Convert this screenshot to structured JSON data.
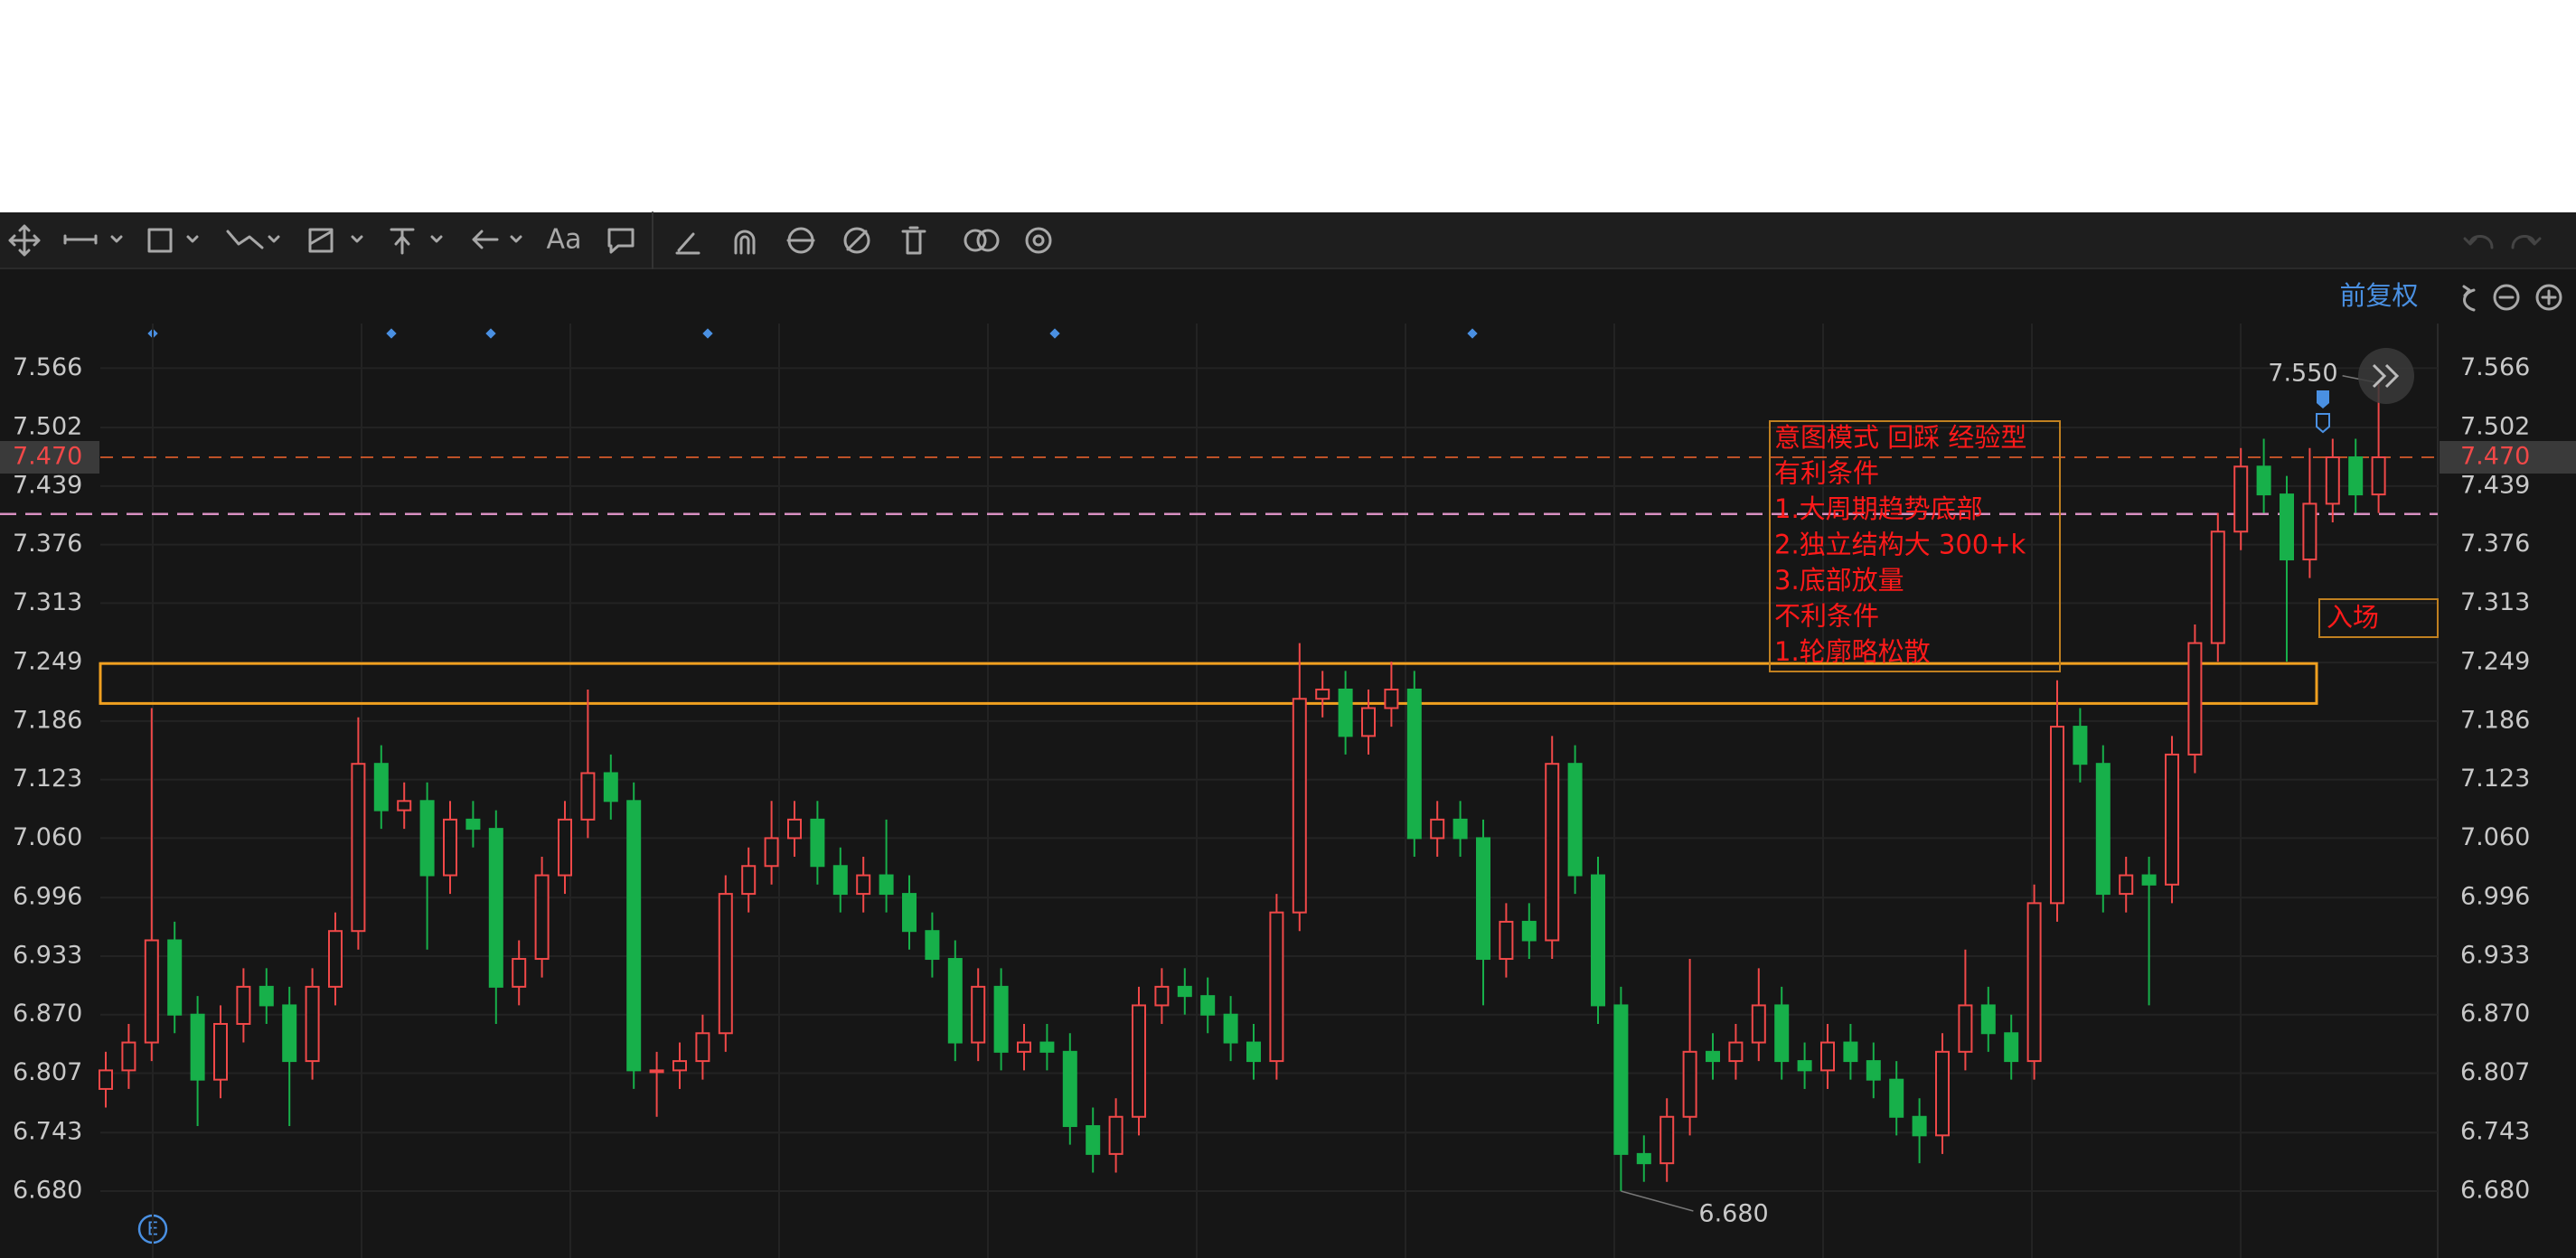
{
  "toolbar": {
    "text_tool": "Aa"
  },
  "header": {
    "adjust_mode": "前复权"
  },
  "annotations": {
    "note_lines": [
      "意图模式 回踩 经验型",
      "有利条件",
      "1.大周期趋势底部",
      "2.独立结构大  300+k",
      "3.底部放量",
      "不利条件",
      "1.轮廓略松散"
    ],
    "entry_label": "入场",
    "event_label": "E"
  },
  "chart_data": {
    "type": "candlestick",
    "up_color": "#f04848",
    "down_color": "#17b04a",
    "grid": true,
    "ylim": [
      6.608,
      7.614
    ],
    "yticks": [
      7.566,
      7.502,
      7.439,
      7.376,
      7.313,
      7.249,
      7.186,
      7.123,
      {
        "value": 7.06,
        "label": "7.060"
      },
      6.996,
      6.933,
      {
        "value": 6.87,
        "label": "6.870"
      },
      6.807,
      6.743,
      {
        "value": 6.68,
        "label": "6.680"
      }
    ],
    "last_price": {
      "value": 7.47,
      "label": "7.470",
      "color": "#e8602c"
    },
    "hlines": [
      {
        "value": 7.409,
        "color": "#d78fc0"
      }
    ],
    "zone": {
      "low": 7.205,
      "high": 7.248,
      "color": "#f0a020"
    },
    "high_mark": {
      "value": 7.55,
      "label": "7.550"
    },
    "low_mark": {
      "value": 6.68,
      "label": "6.680"
    },
    "open": [
      6.79,
      6.81,
      6.84,
      6.95,
      6.87,
      6.8,
      6.86,
      6.9,
      6.88,
      6.82,
      6.9,
      6.96,
      7.14,
      7.09,
      7.1,
      7.02,
      7.08,
      7.07,
      6.9,
      6.93,
      7.02,
      7.08,
      7.13,
      7.1,
      6.81,
      6.81,
      6.82,
      6.85,
      7.0,
      7.03,
      7.06,
      7.08,
      7.03,
      7.0,
      7.02,
      7.0,
      6.96,
      6.93,
      6.84,
      6.9,
      6.83,
      6.84,
      6.83,
      6.75,
      6.72,
      6.76,
      6.88,
      6.9,
      6.89,
      6.87,
      6.84,
      6.82,
      6.98,
      7.21,
      7.22,
      7.17,
      7.2,
      7.22,
      7.06,
      7.08,
      7.06,
      6.93,
      6.97,
      6.95,
      7.14,
      7.02,
      6.88,
      6.72,
      6.71,
      6.76,
      6.83,
      6.82,
      6.84,
      6.88,
      6.82,
      6.81,
      6.84,
      6.82,
      6.8,
      6.76,
      6.74,
      6.83,
      6.88,
      6.85,
      6.82,
      6.99,
      7.18,
      7.14,
      7.0,
      7.02,
      7.01,
      7.15,
      7.27,
      7.39,
      7.46,
      7.43,
      7.36,
      7.42,
      7.47,
      7.43
    ],
    "high": [
      6.83,
      6.86,
      7.2,
      6.97,
      6.89,
      6.88,
      6.92,
      6.92,
      6.9,
      6.92,
      6.98,
      7.19,
      7.16,
      7.12,
      7.12,
      7.1,
      7.1,
      7.09,
      6.95,
      7.04,
      7.1,
      7.22,
      7.15,
      7.12,
      6.83,
      6.84,
      6.87,
      7.02,
      7.05,
      7.1,
      7.1,
      7.1,
      7.05,
      7.04,
      7.08,
      7.02,
      6.98,
      6.95,
      6.92,
      6.92,
      6.86,
      6.86,
      6.85,
      6.77,
      6.78,
      6.9,
      6.92,
      6.92,
      6.91,
      6.89,
      6.86,
      7.0,
      7.27,
      7.24,
      7.24,
      7.22,
      7.25,
      7.24,
      7.1,
      7.1,
      7.08,
      6.99,
      6.99,
      7.17,
      7.16,
      7.04,
      6.9,
      6.74,
      6.78,
      6.93,
      6.85,
      6.86,
      6.92,
      6.9,
      6.84,
      6.86,
      6.86,
      6.84,
      6.82,
      6.78,
      6.85,
      6.94,
      6.9,
      6.87,
      7.01,
      7.23,
      7.2,
      7.16,
      7.04,
      7.04,
      7.17,
      7.29,
      7.41,
      7.48,
      7.49,
      7.45,
      7.48,
      7.49,
      7.49,
      7.55
    ],
    "low": [
      6.77,
      6.79,
      6.82,
      6.85,
      6.75,
      6.78,
      6.84,
      6.86,
      6.75,
      6.8,
      6.88,
      6.94,
      7.07,
      7.07,
      6.94,
      7.0,
      7.05,
      6.86,
      6.88,
      6.91,
      7.0,
      7.06,
      7.08,
      6.79,
      6.76,
      6.79,
      6.8,
      6.83,
      6.98,
      7.01,
      7.04,
      7.01,
      6.98,
      6.98,
      6.98,
      6.94,
      6.91,
      6.82,
      6.82,
      6.81,
      6.81,
      6.81,
      6.73,
      6.7,
      6.7,
      6.74,
      6.86,
      6.87,
      6.85,
      6.82,
      6.8,
      6.8,
      6.96,
      7.19,
      7.15,
      7.15,
      7.18,
      7.04,
      7.04,
      7.04,
      6.88,
      6.91,
      6.93,
      6.93,
      7.0,
      6.86,
      6.68,
      6.69,
      6.69,
      6.74,
      6.8,
      6.8,
      6.82,
      6.8,
      6.79,
      6.79,
      6.8,
      6.78,
      6.74,
      6.71,
      6.72,
      6.81,
      6.83,
      6.8,
      6.8,
      6.97,
      7.12,
      6.98,
      6.98,
      6.88,
      6.99,
      7.13,
      7.25,
      7.37,
      7.41,
      7.25,
      7.34,
      7.4,
      7.41,
      7.41
    ],
    "close": [
      6.81,
      6.84,
      6.95,
      6.87,
      6.8,
      6.86,
      6.9,
      6.88,
      6.82,
      6.9,
      6.96,
      7.14,
      7.09,
      7.1,
      7.02,
      7.08,
      7.07,
      6.9,
      6.93,
      7.02,
      7.08,
      7.13,
      7.1,
      6.81,
      6.81,
      6.82,
      6.85,
      7.0,
      7.03,
      7.06,
      7.08,
      7.03,
      7.0,
      7.02,
      7.0,
      6.96,
      6.93,
      6.84,
      6.9,
      6.83,
      6.84,
      6.83,
      6.75,
      6.72,
      6.76,
      6.88,
      6.9,
      6.89,
      6.87,
      6.84,
      6.82,
      6.98,
      7.21,
      7.22,
      7.17,
      7.2,
      7.22,
      7.06,
      7.08,
      7.06,
      6.93,
      6.97,
      6.95,
      7.14,
      7.02,
      6.88,
      6.72,
      6.71,
      6.76,
      6.83,
      6.82,
      6.84,
      6.88,
      6.82,
      6.81,
      6.84,
      6.82,
      6.8,
      6.76,
      6.74,
      6.83,
      6.88,
      6.85,
      6.82,
      6.99,
      7.18,
      7.14,
      7.0,
      7.02,
      7.01,
      7.15,
      7.27,
      7.39,
      7.46,
      7.43,
      7.36,
      7.42,
      7.47,
      7.43,
      7.47
    ]
  }
}
